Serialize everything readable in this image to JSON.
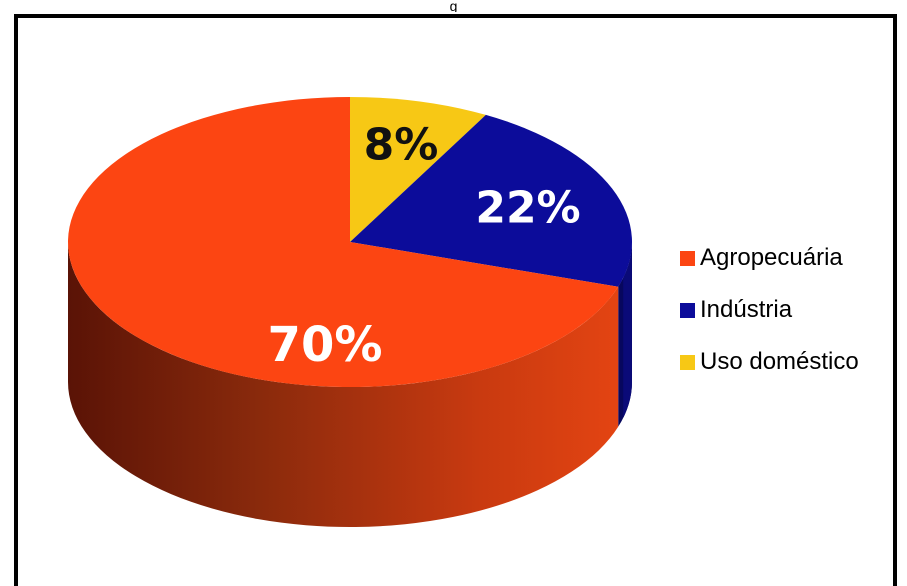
{
  "header": {
    "title_fragment": "g"
  },
  "chart_data": {
    "type": "pie",
    "style": "3d",
    "title": "",
    "legend_position": "right",
    "slices": [
      {
        "name": "Agropecuária",
        "value": 70,
        "label": "70%",
        "color": "#fc4512",
        "label_color": "#ffffff"
      },
      {
        "name": "Indústria",
        "value": 22,
        "label": "22%",
        "color": "#0c0c9a",
        "label_color": "#ffffff"
      },
      {
        "name": "Uso doméstico",
        "value": 8,
        "label": "8%",
        "color": "#f7c815",
        "label_color": "#111111"
      }
    ]
  }
}
